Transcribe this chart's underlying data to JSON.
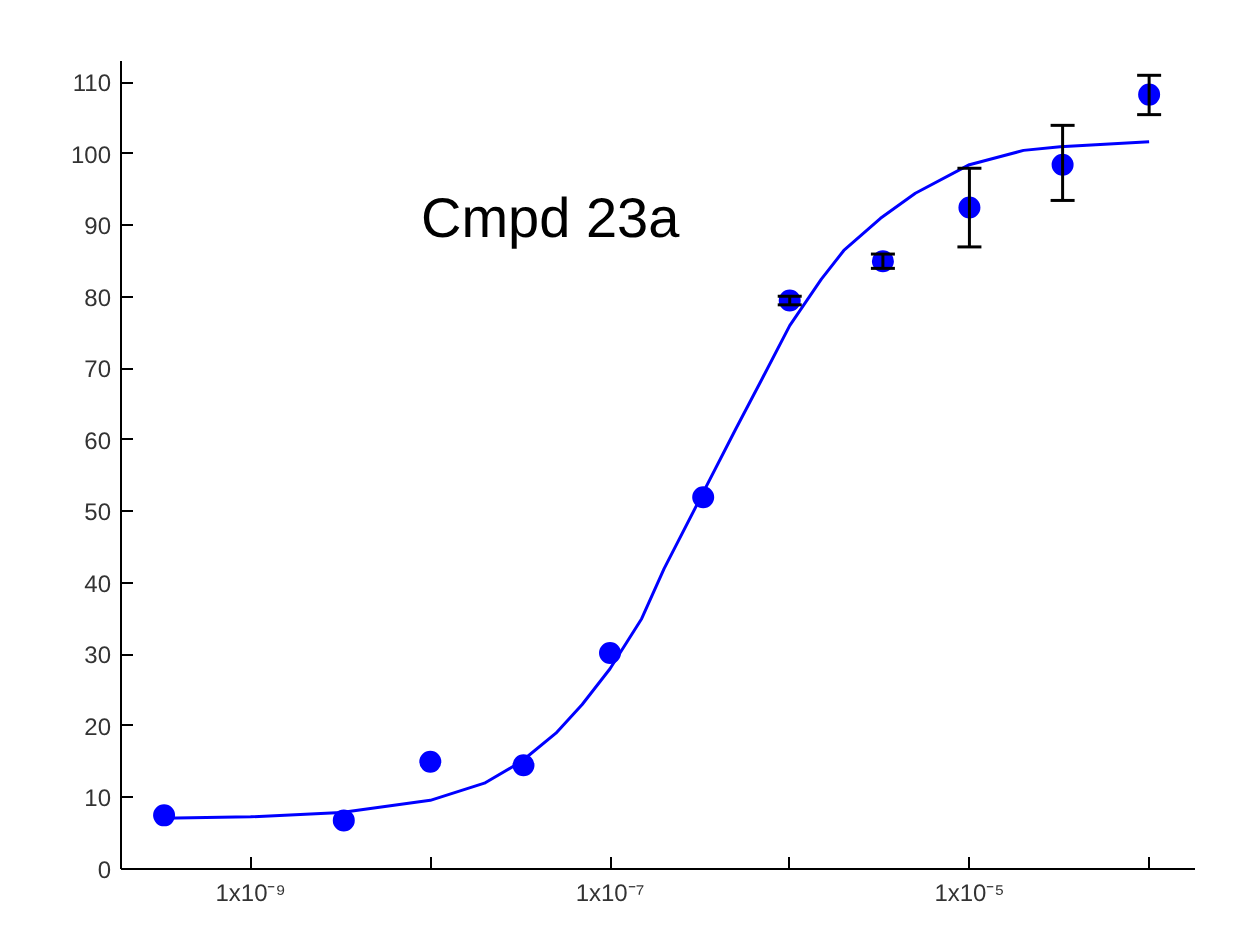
{
  "chart_data": {
    "type": "scatter",
    "log": "x",
    "grid": false,
    "marker": "circle",
    "xlim": [
      1.9e-10,
      0.00018
    ],
    "ylim": [
      0,
      113
    ],
    "xticks": [
      {
        "value": 1e-09,
        "label": "1x10⁻⁹"
      },
      {
        "value": 1e-08,
        "label": null
      },
      {
        "value": 1e-07,
        "label": "1x10⁻⁷"
      },
      {
        "value": 1e-06,
        "label": null
      },
      {
        "value": 1e-05,
        "label": "1x10⁻⁵"
      },
      {
        "value": 0.0001,
        "label": null
      }
    ],
    "yticks": [
      0,
      10,
      20,
      30,
      40,
      50,
      60,
      70,
      80,
      90,
      100,
      110
    ],
    "annotations": [
      "Cmpd 23a"
    ],
    "series": [
      {
        "color": "#0000ff",
        "x": [
          3.3e-10,
          3.3e-09,
          1e-08,
          3.3e-08,
          1e-07,
          3.3e-07,
          1e-06,
          3.3e-06,
          1e-05,
          3.3e-05,
          0.0001
        ],
        "values": [
          7.5,
          6.8,
          15,
          14.5,
          30.2,
          52,
          79.5,
          85,
          92.5,
          98.5,
          108.3
        ],
        "errors": [
          null,
          null,
          null,
          null,
          null,
          null,
          0.6,
          1,
          [
            87,
            98
          ],
          [
            93.5,
            104
          ],
          [
            105.5,
            111
          ]
        ]
      },
      {
        "type": "line",
        "color": "#0000ff",
        "marker": "none",
        "x": [
          3.2e-10,
          1e-09,
          3.2e-09,
          1e-08,
          2e-08,
          3.2e-08,
          5e-08,
          7e-08,
          1e-07,
          1.5e-07,
          2e-07,
          3.2e-07,
          5e-07,
          7e-07,
          1e-06,
          1.5e-06,
          2e-06,
          3.2e-06,
          5e-06,
          1e-05,
          2e-05,
          3.2e-05,
          0.0001
        ],
        "values": [
          7.1,
          7.3,
          7.9,
          9.6,
          12,
          15,
          19,
          23,
          28,
          35,
          42,
          52,
          61.5,
          68.5,
          76,
          82.5,
          86.5,
          91,
          94.5,
          98.5,
          100.5,
          101,
          101.7
        ]
      }
    ]
  }
}
